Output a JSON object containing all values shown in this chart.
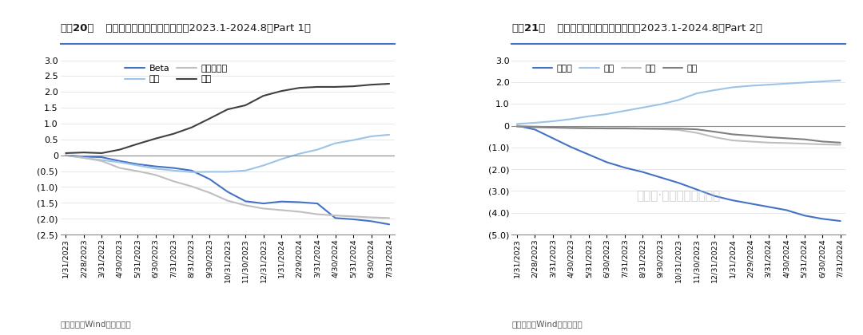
{
  "title1_prefix": "图表20：",
  "title1_body": "  非市值类因子累积超额暴露（2023.1-2024.8，Part 1）",
  "title2_prefix": "图表21：",
  "title2_body": "  非市值类因子累积超额暴露（2023.1-2024.8，Part 2）",
  "footer": "资料来源：Wind，华泰研究",
  "x_labels": [
    "1/31/2023",
    "2/28/2023",
    "3/31/2023",
    "4/30/2023",
    "5/31/2023",
    "6/30/2023",
    "7/31/2023",
    "8/31/2023",
    "9/30/2023",
    "10/31/2023",
    "11/30/2023",
    "12/31/2023",
    "1/31/2024",
    "2/29/2024",
    "3/31/2024",
    "4/30/2024",
    "5/31/2024",
    "6/30/2024",
    "7/31/2024"
  ],
  "chart1": {
    "Beta": [
      0.0,
      -0.04,
      -0.06,
      -0.18,
      -0.28,
      -0.35,
      -0.4,
      -0.48,
      -0.75,
      -1.15,
      -1.45,
      -1.52,
      -1.46,
      -1.48,
      -1.52,
      -1.98,
      -2.02,
      -2.08,
      -2.18
    ],
    "动量": [
      0.0,
      -0.08,
      -0.15,
      -0.22,
      -0.32,
      -0.42,
      -0.48,
      -0.53,
      -0.52,
      -0.52,
      -0.48,
      -0.32,
      -0.12,
      0.05,
      0.18,
      0.38,
      0.48,
      0.6,
      0.65
    ],
    "残差波动率": [
      0.0,
      -0.08,
      -0.18,
      -0.4,
      -0.5,
      -0.62,
      -0.82,
      -0.98,
      -1.18,
      -1.43,
      -1.58,
      -1.68,
      -1.73,
      -1.78,
      -1.86,
      -1.9,
      -1.93,
      -1.96,
      -1.98
    ],
    "价值": [
      0.07,
      0.09,
      0.07,
      0.18,
      0.36,
      0.53,
      0.68,
      0.88,
      1.16,
      1.45,
      1.58,
      1.88,
      2.03,
      2.13,
      2.16,
      2.16,
      2.18,
      2.23,
      2.26
    ],
    "colors": {
      "Beta": "#4472C4",
      "动量": "#9DC3E6",
      "残差波动率": "#BFBFBF",
      "价值": "#404040"
    },
    "series_order": [
      "Beta",
      "动量",
      "残差波动率",
      "价值"
    ]
  },
  "chart2": {
    "流动性": [
      0.0,
      -0.18,
      -0.58,
      -0.98,
      -1.33,
      -1.68,
      -1.93,
      -2.13,
      -2.38,
      -2.63,
      -2.93,
      -3.23,
      -3.43,
      -3.58,
      -3.73,
      -3.88,
      -4.13,
      -4.28,
      -4.38
    ],
    "盈利": [
      0.08,
      0.13,
      0.2,
      0.3,
      0.43,
      0.53,
      0.68,
      0.83,
      0.98,
      1.18,
      1.48,
      1.63,
      1.76,
      1.83,
      1.88,
      1.93,
      1.98,
      2.03,
      2.08
    ],
    "成长": [
      0.0,
      -0.04,
      -0.07,
      -0.09,
      -0.11,
      -0.11,
      -0.11,
      -0.13,
      -0.16,
      -0.2,
      -0.33,
      -0.53,
      -0.68,
      -0.73,
      -0.78,
      -0.8,
      -0.83,
      -0.86,
      -0.88
    ],
    "杠杆": [
      -0.04,
      -0.07,
      -0.09,
      -0.11,
      -0.12,
      -0.13,
      -0.13,
      -0.14,
      -0.14,
      -0.14,
      -0.17,
      -0.28,
      -0.4,
      -0.46,
      -0.53,
      -0.58,
      -0.63,
      -0.73,
      -0.78
    ],
    "colors": {
      "流动性": "#4472C4",
      "盈利": "#9DC3E6",
      "成长": "#BFBFBF",
      "杠杆": "#808080"
    },
    "series_order": [
      "流动性",
      "盈利",
      "成长",
      "杠杆"
    ]
  },
  "ylim1": [
    -2.5,
    3.0
  ],
  "ylim2": [
    -5.0,
    3.0
  ],
  "yticks1": [
    -2.5,
    -2.0,
    -1.5,
    -1.0,
    -0.5,
    0.0,
    0.5,
    1.0,
    1.5,
    2.0,
    2.5,
    3.0
  ],
  "yticks2": [
    -5.0,
    -4.0,
    -3.0,
    -2.0,
    -1.0,
    0.0,
    1.0,
    2.0,
    3.0
  ],
  "bg_color": "#FFFFFF",
  "title_line_color": "#4472C4",
  "watermark_text": "公众号·华泰证券金融工程"
}
